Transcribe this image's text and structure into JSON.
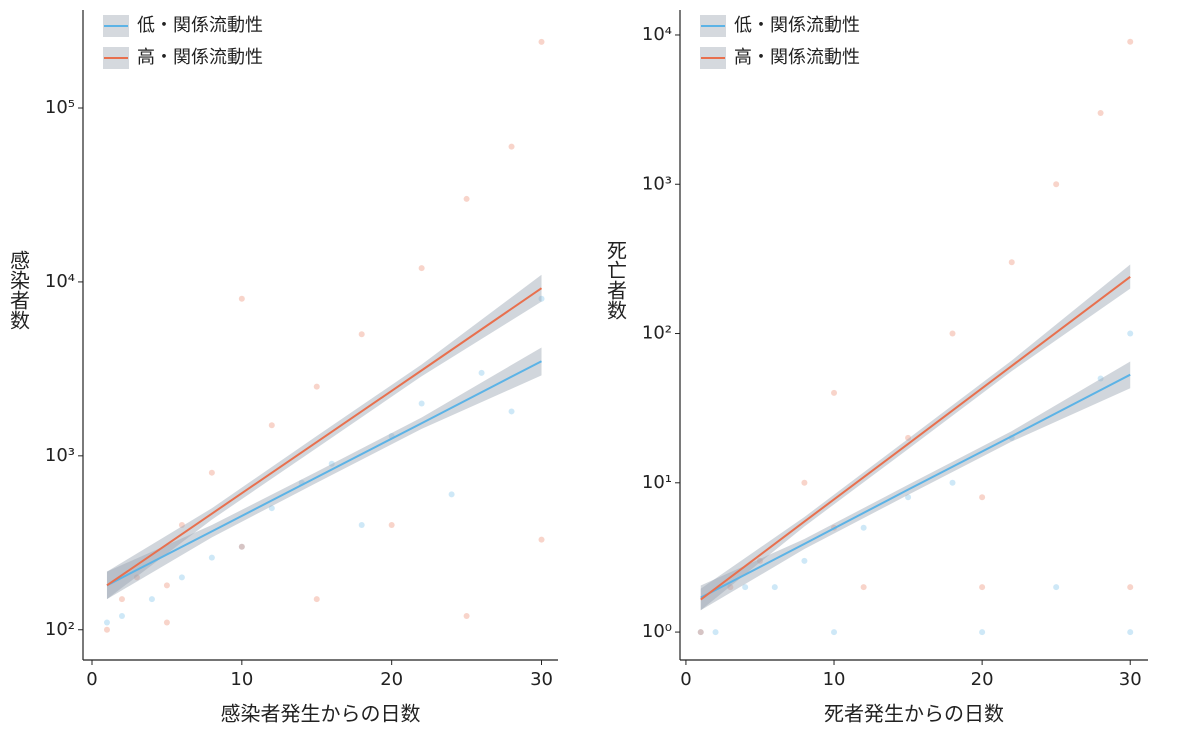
{
  "chart_data": [
    {
      "type": "scatter",
      "xlabel": "感染者発生からの日数",
      "ylabel": "感染者数",
      "log_y": true,
      "legend": "upper left",
      "xlim": [
        -0.6,
        31.1
      ],
      "xticks": [
        0,
        10,
        20,
        30
      ],
      "ylim": [
        67,
        366000
      ],
      "yticks": [
        {
          "value": 100,
          "label": "10²"
        },
        {
          "value": 1000,
          "label": "10³"
        },
        {
          "value": 10000,
          "label": "10⁴"
        },
        {
          "value": 100000,
          "label": "10⁵"
        }
      ],
      "series": [
        {
          "name": "低・関係流動性",
          "color": "#5cb3e6",
          "x": [
            1,
            8,
            15,
            22,
            30
          ],
          "values": [
            180,
            368,
            753,
            1540,
            3500
          ],
          "lower": [
            150,
            340,
            700,
            1430,
            2900
          ],
          "upper": [
            216,
            400,
            810,
            1660,
            4200
          ],
          "points_x": [
            1,
            2,
            4,
            6,
            8,
            10,
            12,
            14,
            16,
            18,
            20,
            22,
            24,
            26,
            28,
            30
          ],
          "points_y": [
            110,
            120,
            150,
            200,
            260,
            300,
            500,
            700,
            900,
            400,
            1300,
            2000,
            600,
            3000,
            1800,
            8000
          ]
        },
        {
          "name": "高・関係流動性",
          "color": "#e8704e",
          "x": [
            1,
            8,
            15,
            22,
            30
          ],
          "values": [
            180,
            465,
            1200,
            3100,
            9200
          ],
          "lower": [
            150,
            430,
            1110,
            2870,
            7700
          ],
          "upper": [
            216,
            500,
            1300,
            3350,
            11000
          ],
          "points_x": [
            1,
            2,
            3,
            5,
            6,
            8,
            10,
            12,
            15,
            18,
            20,
            22,
            25,
            28,
            30,
            30,
            25,
            15,
            10,
            5
          ],
          "points_y": [
            100,
            150,
            200,
            180,
            400,
            800,
            300,
            1500,
            2500,
            5000,
            400,
            12000,
            30000,
            60000,
            240000,
            330,
            120,
            150,
            8000,
            110
          ]
        }
      ]
    },
    {
      "type": "scatter",
      "xlabel": "死者発生からの日数",
      "ylabel": "死亡者数",
      "log_y": true,
      "legend": "upper left",
      "xlim": [
        -0.4,
        31.2
      ],
      "xticks": [
        0,
        10,
        20,
        30
      ],
      "ylim": [
        0.65,
        14700
      ],
      "yticks": [
        {
          "value": 1,
          "label": "10⁰"
        },
        {
          "value": 10,
          "label": "10¹"
        },
        {
          "value": 100,
          "label": "10²"
        },
        {
          "value": 1000,
          "label": "10³"
        },
        {
          "value": 10000,
          "label": "10⁴"
        }
      ],
      "series": [
        {
          "name": "低・関係流動性",
          "color": "#5cb3e6",
          "x": [
            1,
            8,
            15,
            22,
            30
          ],
          "values": [
            1.7,
            3.9,
            9.0,
            20.5,
            53
          ],
          "lower": [
            1.4,
            3.6,
            8.3,
            18.9,
            43
          ],
          "upper": [
            2.05,
            4.2,
            9.7,
            22.2,
            65
          ],
          "points_x": [
            1,
            2,
            4,
            6,
            8,
            10,
            12,
            15,
            18,
            20,
            22,
            25,
            28,
            30,
            30
          ],
          "points_y": [
            1,
            1,
            2,
            2,
            3,
            1,
            5,
            8,
            10,
            1,
            20,
            2,
            50,
            1,
            100
          ]
        },
        {
          "name": "高・関係流動性",
          "color": "#e8704e",
          "x": [
            1,
            8,
            15,
            22,
            30
          ],
          "values": [
            1.65,
            5.5,
            18.2,
            60.7,
            240
          ],
          "lower": [
            1.4,
            5.1,
            16.8,
            56,
            200
          ],
          "upper": [
            1.95,
            5.9,
            19.7,
            66,
            290
          ],
          "points_x": [
            1,
            3,
            5,
            8,
            10,
            12,
            15,
            18,
            20,
            22,
            25,
            28,
            30,
            30,
            20,
            10
          ],
          "points_y": [
            1,
            2,
            3,
            10,
            5,
            2,
            20,
            100,
            8,
            300,
            1000,
            3000,
            9000,
            2,
            2,
            40
          ]
        }
      ]
    }
  ]
}
